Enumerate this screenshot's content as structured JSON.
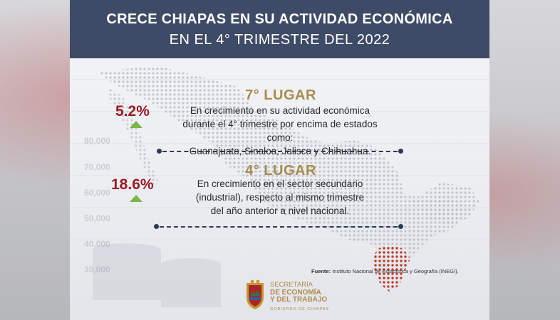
{
  "header": {
    "title_line1": "CRECE CHIAPAS EN SU ACTIVIDAD ECONÓMICA",
    "title_line2": "EN EL 4° TRIMESTRE DEL 2022"
  },
  "background_numbers": [
    "80,000",
    "70,000",
    "60,000",
    "50,000",
    "40,000",
    "30,000"
  ],
  "items": [
    {
      "rank": "7° LUGAR",
      "percent": "5.2%",
      "trend": "up",
      "description": [
        "En crecimiento en su actividad económica",
        "durante el 4° trimestre por encima de estados como:",
        "Guanajuato, Sinaloa, Jalisco y Chihuahua."
      ]
    },
    {
      "rank": "4° LUGAR",
      "percent": "18.6%",
      "trend": "up",
      "description": [
        "En crecimiento en el sector secundario",
        "(industrial), respecto al mismo trimestre",
        "del año anterior a nivel nacional."
      ]
    }
  ],
  "source": {
    "label": "Fuente:",
    "text": "Instituto Nacional de Estadística y Geografía (INEGI)."
  },
  "logo": {
    "line1": "SECRETARÍA",
    "line2": "DE ECONOMÍA",
    "line3": "Y DEL TRABAJO",
    "line4": "GOBIERNO DE CHIAPAS"
  },
  "colors": {
    "header_bg": "#3d4b66",
    "rank_gold": "#a88c4f",
    "percent_red": "#9b1b24",
    "arrow_green": "#7ab648",
    "line_navy": "#2c3a55",
    "map_highlight": "#c0392b"
  }
}
